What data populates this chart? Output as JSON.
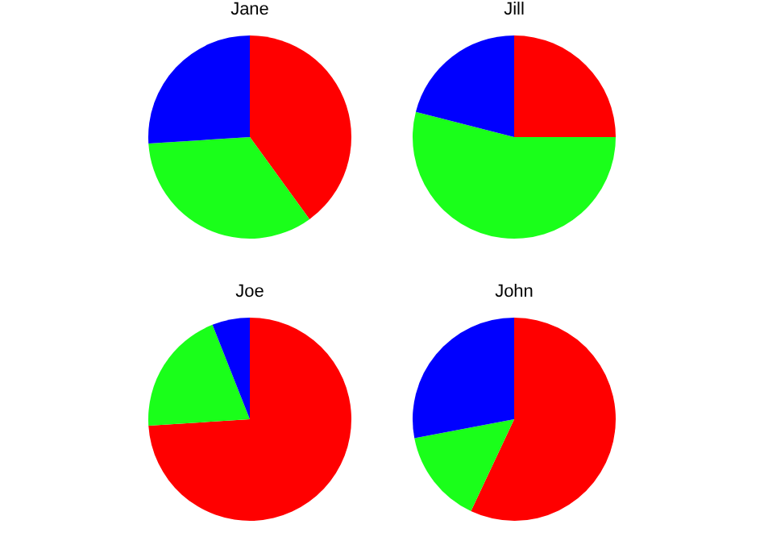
{
  "chart_data": [
    {
      "type": "pie",
      "title": "Jane",
      "categories": [
        null,
        null,
        null
      ],
      "values": [
        40,
        34,
        26
      ],
      "colors": [
        "#ff0000",
        "#1aff1a",
        "#0000ff"
      ]
    },
    {
      "type": "pie",
      "title": "Jill",
      "categories": [
        null,
        null,
        null
      ],
      "values": [
        25,
        54,
        21
      ],
      "colors": [
        "#ff0000",
        "#1aff1a",
        "#0000ff"
      ]
    },
    {
      "type": "pie",
      "title": "Joe",
      "categories": [
        null,
        null,
        null
      ],
      "values": [
        74,
        20,
        6
      ],
      "colors": [
        "#ff0000",
        "#1aff1a",
        "#0000ff"
      ]
    },
    {
      "type": "pie",
      "title": "John",
      "categories": [
        null,
        null,
        null
      ],
      "values": [
        57,
        15,
        28
      ],
      "colors": [
        "#ff0000",
        "#1aff1a",
        "#0000ff"
      ]
    }
  ]
}
